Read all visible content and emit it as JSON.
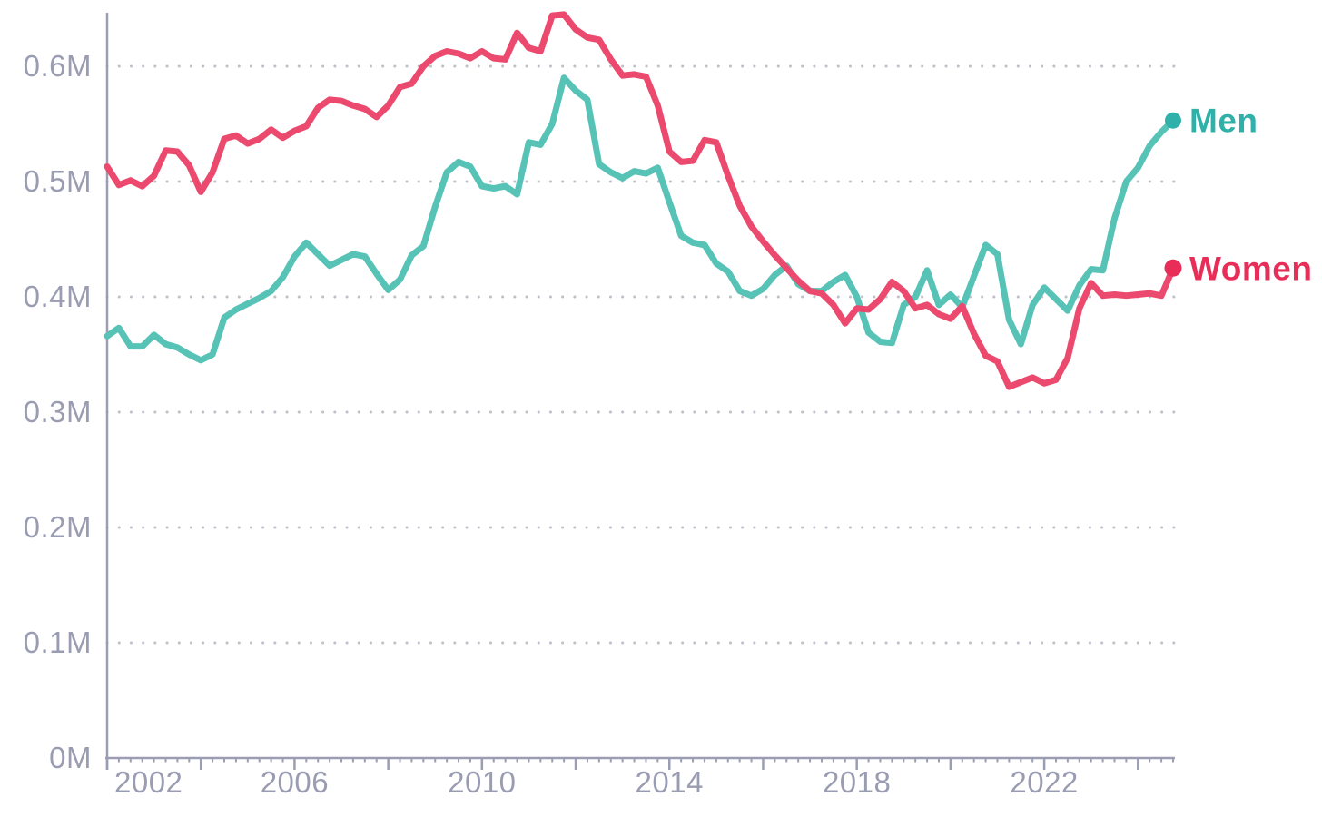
{
  "page": {
    "background": "#ffffff",
    "title": ""
  },
  "chart_data": {
    "type": "line",
    "title": "",
    "subtitle": "",
    "unit": "millions of people",
    "x_frequency": "quarterly",
    "x_start": "2002 Q1",
    "x_end": "2024 Q4",
    "x_tick_labels": [
      "2002",
      "2006",
      "2010",
      "2014",
      "2018",
      "2022"
    ],
    "x_label_interval_years": 4,
    "x_major_tick_interval_years": 2,
    "y_tick_labels": [
      "0M",
      "0.1M",
      "0.2M",
      "0.3M",
      "0.4M",
      "0.5M",
      "0.6M"
    ],
    "y_range_m": [
      0,
      0.66
    ],
    "grid": "dotted-horizontal",
    "legend_position": "end-of-line-right",
    "colors": {
      "axis": "#9b9eb3",
      "tick": "#9b9eb3",
      "grid_dots": "#bfc0c8",
      "background": "#ffffff"
    },
    "series": [
      {
        "name": "Men",
        "line_color": "#57c2b6",
        "label_color": "#2fb1a9",
        "values_m": [
          0.366,
          0.373,
          0.357,
          0.357,
          0.367,
          0.359,
          0.356,
          0.35,
          0.345,
          0.35,
          0.382,
          0.389,
          0.394,
          0.399,
          0.405,
          0.417,
          0.435,
          0.447,
          0.437,
          0.427,
          0.432,
          0.437,
          0.435,
          0.42,
          0.406,
          0.415,
          0.436,
          0.444,
          0.478,
          0.508,
          0.517,
          0.513,
          0.496,
          0.494,
          0.496,
          0.489,
          0.534,
          0.532,
          0.55,
          0.59,
          0.579,
          0.571,
          0.515,
          0.508,
          0.503,
          0.509,
          0.507,
          0.512,
          0.482,
          0.453,
          0.447,
          0.445,
          0.429,
          0.422,
          0.405,
          0.401,
          0.407,
          0.419,
          0.427,
          0.411,
          0.405,
          0.405,
          0.413,
          0.419,
          0.4,
          0.369,
          0.361,
          0.36,
          0.393,
          0.4,
          0.423,
          0.393,
          0.402,
          0.391,
          0.418,
          0.445,
          0.437,
          0.38,
          0.359,
          0.393,
          0.408,
          0.398,
          0.388,
          0.41,
          0.424,
          0.423,
          0.468,
          0.5,
          0.512,
          0.531,
          0.543,
          0.553
        ]
      },
      {
        "name": "Women",
        "line_color": "#eb4a6e",
        "label_color": "#e72d58",
        "values_m": [
          0.513,
          0.497,
          0.501,
          0.496,
          0.505,
          0.527,
          0.526,
          0.514,
          0.491,
          0.508,
          0.537,
          0.54,
          0.533,
          0.537,
          0.545,
          0.538,
          0.544,
          0.548,
          0.564,
          0.571,
          0.57,
          0.566,
          0.563,
          0.556,
          0.566,
          0.582,
          0.585,
          0.6,
          0.609,
          0.613,
          0.611,
          0.607,
          0.613,
          0.607,
          0.606,
          0.629,
          0.616,
          0.613,
          0.644,
          0.645,
          0.632,
          0.625,
          0.623,
          0.606,
          0.592,
          0.593,
          0.591,
          0.566,
          0.526,
          0.517,
          0.518,
          0.536,
          0.534,
          0.505,
          0.479,
          0.461,
          0.448,
          0.436,
          0.425,
          0.414,
          0.405,
          0.403,
          0.393,
          0.377,
          0.39,
          0.389,
          0.398,
          0.413,
          0.405,
          0.39,
          0.393,
          0.385,
          0.381,
          0.392,
          0.368,
          0.349,
          0.344,
          0.322,
          0.326,
          0.33,
          0.325,
          0.328,
          0.347,
          0.39,
          0.412,
          0.401,
          0.402,
          0.401,
          0.402,
          0.403,
          0.401,
          0.425
        ]
      }
    ]
  }
}
